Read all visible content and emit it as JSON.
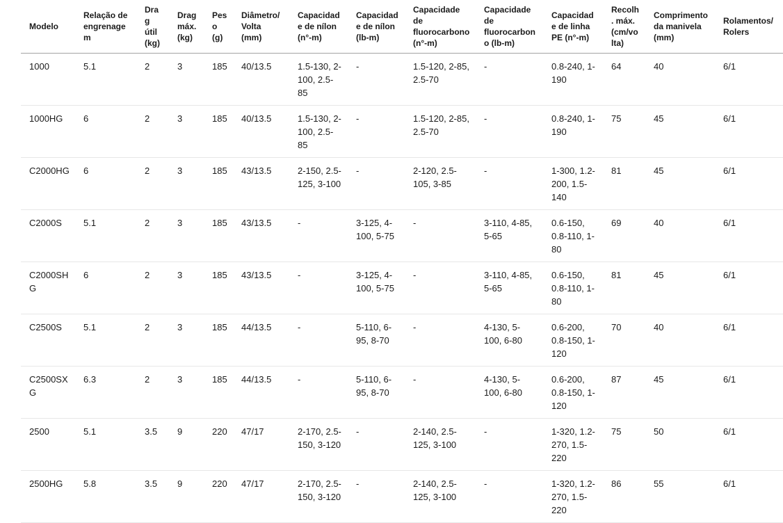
{
  "colors": {
    "text": "#1b1b1b",
    "background": "#ffffff",
    "header_border": "#a3a3a3",
    "row_border": "#e7e7e7"
  },
  "table": {
    "columns": [
      {
        "id": "modelo",
        "label": "Modelo"
      },
      {
        "id": "relacao",
        "label": "Relação de engrenagem"
      },
      {
        "id": "drag-util",
        "label": "Drag útil (kg)"
      },
      {
        "id": "drag-max",
        "label": "Drag máx. (kg)"
      },
      {
        "id": "peso",
        "label": "Peso (g)"
      },
      {
        "id": "diametro-volta",
        "label": "Diâmetro/Volta (mm)"
      },
      {
        "id": "cap-nilon-n",
        "label": "Capacidade de nílon (n°-m)"
      },
      {
        "id": "cap-nilon-lb",
        "label": "Capacidade de nílon (lb-m)"
      },
      {
        "id": "cap-fluoro-n",
        "label": "Capacidade de fluorocarbono (n°-m)"
      },
      {
        "id": "cap-fluoro-lb",
        "label": "Capacidade de fluorocarbono (lb-m)"
      },
      {
        "id": "cap-linha-pe",
        "label": "Capacidade de linha PE (n°-m)"
      },
      {
        "id": "recolhimento",
        "label": "Recolh. máx. (cm/volta)"
      },
      {
        "id": "comprimento",
        "label": "Comprimento da manivela (mm)"
      },
      {
        "id": "rolamentos",
        "label": "Rolamentos/Rolers"
      }
    ],
    "rows": [
      [
        "1000",
        "5.1",
        "2",
        "3",
        "185",
        "40/13.5",
        "1.5-130, 2-100, 2.5-85",
        "-",
        "1.5-120, 2-85, 2.5-70",
        "-",
        "0.8-240, 1-190",
        "64",
        "40",
        "6/1"
      ],
      [
        "1000HG",
        "6",
        "2",
        "3",
        "185",
        "40/13.5",
        "1.5-130, 2-100, 2.5-85",
        "-",
        "1.5-120, 2-85, 2.5-70",
        "-",
        "0.8-240, 1-190",
        "75",
        "45",
        "6/1"
      ],
      [
        "C2000HG",
        "6",
        "2",
        "3",
        "185",
        "43/13.5",
        "2-150, 2.5-125, 3-100",
        "-",
        "2-120, 2.5-105, 3-85",
        "-",
        "1-300, 1.2-200, 1.5-140",
        "81",
        "45",
        "6/1"
      ],
      [
        "C2000S",
        "5.1",
        "2",
        "3",
        "185",
        "43/13.5",
        "-",
        "3-125, 4-100, 5-75",
        "-",
        "3-110, 4-85, 5-65",
        "0.6-150, 0.8-110, 1-80",
        "69",
        "40",
        "6/1"
      ],
      [
        "C2000SHG",
        "6",
        "2",
        "3",
        "185",
        "43/13.5",
        "-",
        "3-125, 4-100, 5-75",
        "-",
        "3-110, 4-85, 5-65",
        "0.6-150, 0.8-110, 1-80",
        "81",
        "45",
        "6/1"
      ],
      [
        "C2500S",
        "5.1",
        "2",
        "3",
        "185",
        "44/13.5",
        "-",
        "5-110, 6-95, 8-70",
        "-",
        "4-130, 5-100, 6-80",
        "0.6-200, 0.8-150, 1-120",
        "70",
        "40",
        "6/1"
      ],
      [
        "C2500SXG",
        "6.3",
        "2",
        "3",
        "185",
        "44/13.5",
        "-",
        "5-110, 6-95, 8-70",
        "-",
        "4-130, 5-100, 6-80",
        "0.6-200, 0.8-150, 1-120",
        "87",
        "45",
        "6/1"
      ],
      [
        "2500",
        "5.1",
        "3.5",
        "9",
        "220",
        "47/17",
        "2-170, 2.5-150, 3-120",
        "-",
        "2-140, 2.5-125, 3-100",
        "-",
        "1-320, 1.2-270, 1.5-220",
        "75",
        "50",
        "6/1"
      ],
      [
        "2500HG",
        "5.8",
        "3.5",
        "9",
        "220",
        "47/17",
        "2-170, 2.5-150, 3-120",
        "-",
        "2-140, 2.5-125, 3-100",
        "-",
        "1-320, 1.2-270, 1.5-220",
        "86",
        "55",
        "6/1"
      ]
    ]
  }
}
